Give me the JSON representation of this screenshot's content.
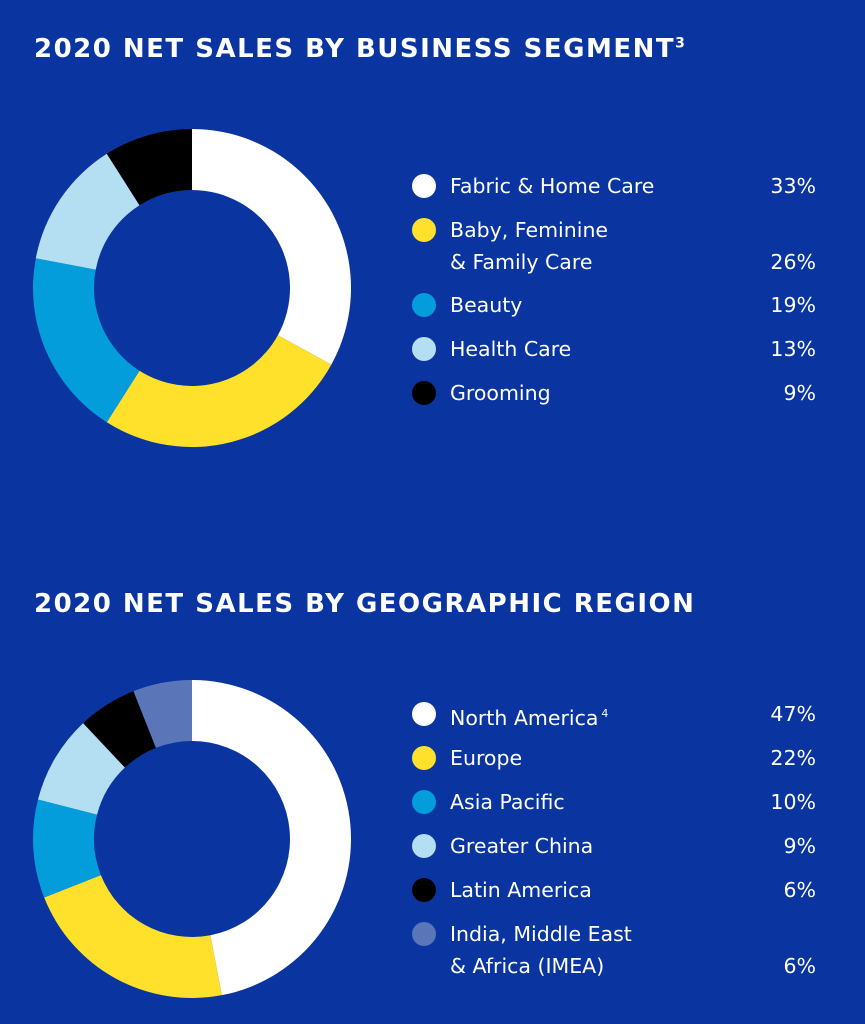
{
  "chart_data": [
    {
      "type": "pie",
      "title": "2020 NET SALES BY BUSINESS SEGMENT",
      "title_superscript": "3",
      "categories": [
        "Fabric & Home Care",
        "Baby, Feminine\n& Family Care",
        "Beauty",
        "Health Care",
        "Grooming"
      ],
      "category_superscripts": [
        "",
        "",
        "",
        "",
        ""
      ],
      "values": [
        33,
        26,
        19,
        13,
        9
      ],
      "value_labels": [
        "33%",
        "26%",
        "19%",
        "13%",
        "9%"
      ],
      "colors": [
        "#ffffff",
        "#ffe12b",
        "#039ddc",
        "#b4def1",
        "#000000"
      ],
      "donut": true,
      "legend_position": "right"
    },
    {
      "type": "pie",
      "title": "2020 NET SALES BY GEOGRAPHIC REGION",
      "title_superscript": "",
      "categories": [
        "North America",
        "Europe",
        "Asia Pacific",
        "Greater China",
        "Latin America",
        "India, Middle East\n& Africa (IMEA)"
      ],
      "category_superscripts": [
        "4",
        "",
        "",
        "",
        "",
        ""
      ],
      "values": [
        47,
        22,
        10,
        9,
        6,
        6
      ],
      "value_labels": [
        "47%",
        "22%",
        "10%",
        "9%",
        "6%",
        "6%"
      ],
      "colors": [
        "#ffffff",
        "#ffe12b",
        "#039ddc",
        "#b4def1",
        "#000000",
        "#5b76b8"
      ],
      "donut": true,
      "legend_position": "right"
    }
  ]
}
